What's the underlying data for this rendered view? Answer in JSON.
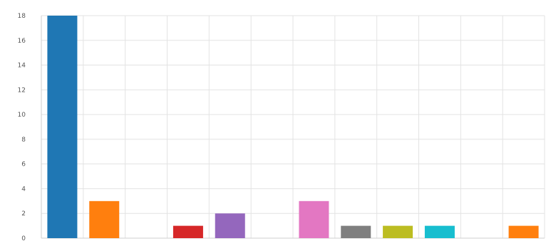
{
  "chart_data": {
    "type": "bar",
    "title": "",
    "xlabel": "",
    "ylabel": "",
    "ylim": [
      0,
      18
    ],
    "yticks": [
      0,
      2,
      4,
      6,
      8,
      10,
      12,
      14,
      16,
      18
    ],
    "grid": true,
    "legend": "none",
    "bars": [
      {
        "value": 18,
        "color": "#1f77b4"
      },
      {
        "value": 3,
        "color": "#ff7f0e"
      },
      {
        "value": 0,
        "color": "#2ca02c"
      },
      {
        "value": 1,
        "color": "#d62728"
      },
      {
        "value": 2,
        "color": "#9467bd"
      },
      {
        "value": 0,
        "color": "#8c564b"
      },
      {
        "value": 3,
        "color": "#e377c2"
      },
      {
        "value": 1,
        "color": "#7f7f7f"
      },
      {
        "value": 1,
        "color": "#bcbd22"
      },
      {
        "value": 1,
        "color": "#17becf"
      },
      {
        "value": 0,
        "color": "#1f77b4"
      },
      {
        "value": 1,
        "color": "#ff7f0e"
      }
    ]
  }
}
